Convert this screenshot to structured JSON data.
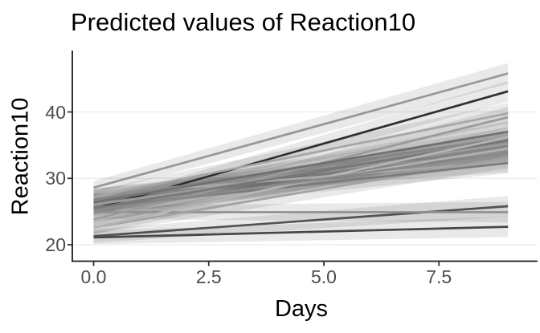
{
  "chart_data": {
    "type": "line",
    "title": "Predicted values of Reaction10",
    "xlabel": "Days",
    "ylabel": "Reaction10",
    "x": [
      0,
      9
    ],
    "x_ticks": {
      "values": [
        0,
        2.5,
        5,
        7.5
      ],
      "labels": [
        "0.0",
        "2.5",
        "5.0",
        "7.5"
      ]
    },
    "y_ticks": {
      "values": [
        20,
        30,
        40
      ],
      "labels": [
        "20",
        "30",
        "40"
      ]
    },
    "xlim": [
      -0.46,
      9.64
    ],
    "ylim": [
      17.5,
      49.6
    ],
    "grid": "horizontal major gridlines only",
    "legend": "none",
    "ribbon": {
      "half_width_start": 1.0,
      "half_width_end": 1.55,
      "fill": "rgba(0,0,0,0.085)"
    },
    "series": [
      {
        "name": "line-01",
        "values": [
          25.4,
          43.1
        ],
        "color": "#2f2f2f"
      },
      {
        "name": "line-02",
        "values": [
          21.1,
          22.7
        ],
        "color": "#474747"
      },
      {
        "name": "line-03",
        "values": [
          21.3,
          25.8
        ],
        "color": "#525252"
      },
      {
        "name": "line-04",
        "values": [
          27.5,
          32.5
        ],
        "color": "#a9a9a9"
      },
      {
        "name": "line-05",
        "values": [
          27.4,
          34.0
        ],
        "color": "#909090"
      },
      {
        "name": "line-06",
        "values": [
          26.0,
          35.2
        ],
        "color": "#9c9c9c"
      },
      {
        "name": "line-07",
        "values": [
          26.8,
          36.1
        ],
        "color": "#858585"
      },
      {
        "name": "line-08",
        "values": [
          24.4,
          34.5
        ],
        "color": "#b1b1b1"
      },
      {
        "name": "line-09",
        "values": [
          24.9,
          24.9
        ],
        "color": "#8f8f8f"
      },
      {
        "name": "line-10",
        "values": [
          28.6,
          45.8
        ],
        "color": "#979797"
      },
      {
        "name": "line-11",
        "values": [
          22.6,
          33.1
        ],
        "color": "#a2a2a2"
      },
      {
        "name": "line-12",
        "values": [
          23.8,
          39.2
        ],
        "color": "#9a9a9a"
      },
      {
        "name": "line-13",
        "values": [
          25.6,
          32.3
        ],
        "color": "#7b7b7b"
      },
      {
        "name": "line-14",
        "values": [
          27.2,
          39.8
        ],
        "color": "#a6a6a6"
      },
      {
        "name": "line-15",
        "values": [
          25.5,
          35.7
        ],
        "color": "#787878"
      },
      {
        "name": "line-16",
        "values": [
          22.6,
          36.2
        ],
        "color": "#b5b5b5"
      },
      {
        "name": "line-17",
        "values": [
          25.2,
          33.8
        ],
        "color": "#898989"
      },
      {
        "name": "line-18",
        "values": [
          26.4,
          37.0
        ],
        "color": "#707070"
      }
    ]
  },
  "colors": {
    "background": "#ffffff",
    "title": "#000000",
    "axis_title": "#000000",
    "axis_text": "#4d4d4d",
    "axis_line": "#1a1a1a",
    "tick_mark": "#333333",
    "gridline": "#ebebeb"
  }
}
